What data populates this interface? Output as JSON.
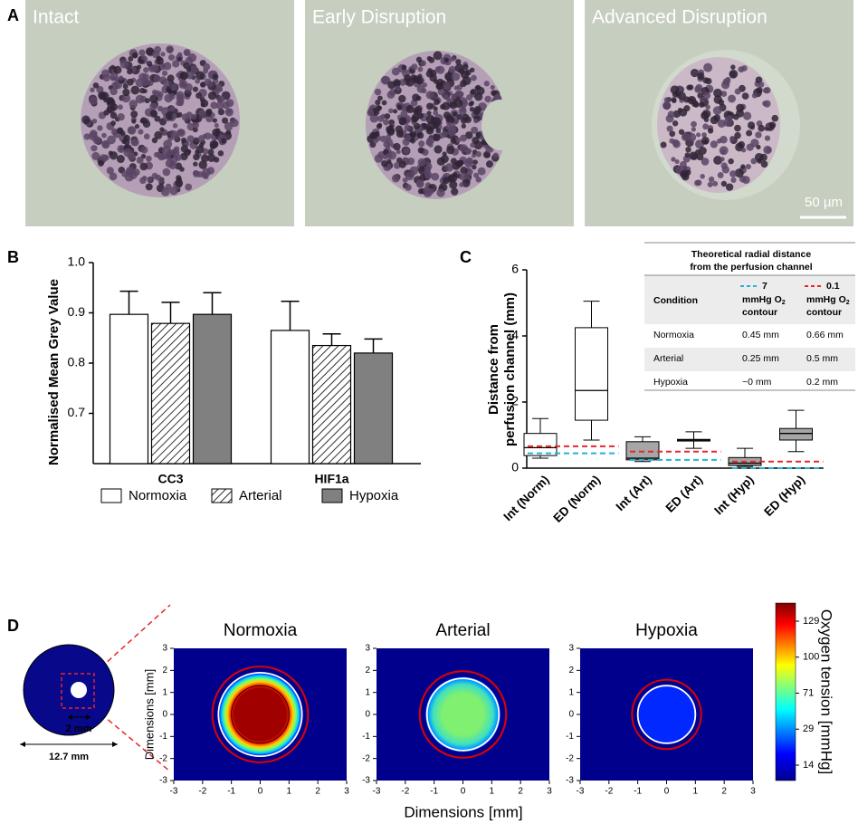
{
  "panel_labels": [
    "A",
    "B",
    "C",
    "D"
  ],
  "micrographs": {
    "labels": [
      "Intact",
      "Early Disruption",
      "Advanced Disruption"
    ],
    "scale_bar": "50 µm"
  },
  "chart_data": [
    {
      "type": "bar",
      "ylabel": "Normalised Mean Grey Value",
      "categories": [
        "CC3",
        "HIF1a"
      ],
      "series": [
        {
          "name": "Normoxia",
          "color": "#ffffff",
          "pattern": "none",
          "values": [
            0.897,
            0.865
          ],
          "errors": [
            0.046,
            0.058
          ]
        },
        {
          "name": "Arterial",
          "color": "#ffffff",
          "pattern": "hatch",
          "values": [
            0.879,
            0.835
          ],
          "errors": [
            0.042,
            0.023
          ]
        },
        {
          "name": "Hypoxia",
          "color": "#808080",
          "pattern": "none",
          "values": [
            0.897,
            0.82
          ],
          "errors": [
            0.043,
            0.028
          ]
        }
      ],
      "ylim": [
        0.6,
        1.0
      ],
      "yticks": [
        0.7,
        0.8,
        0.9,
        {
          "value": 1.0,
          "label": "1.0"
        }
      ]
    },
    {
      "type": "box",
      "ylabel": [
        "Distance from",
        "perfusion channel  (mm)"
      ],
      "categories": [
        "Int (Norm)",
        "ED (Norm)",
        "Int (Art)",
        "ED (Art)",
        "Int (Hyp)",
        "ED (Hyp)"
      ],
      "min": [
        0.3,
        0.85,
        0.2,
        0.6,
        0.05,
        0.5
      ],
      "q1": [
        0.38,
        1.45,
        0.25,
        0.82,
        0.08,
        0.85
      ],
      "median": [
        0.62,
        2.35,
        0.3,
        0.85,
        0.15,
        1.05
      ],
      "q3": [
        1.05,
        4.25,
        0.8,
        0.87,
        0.32,
        1.2
      ],
      "max": [
        1.5,
        5.05,
        0.95,
        1.1,
        0.6,
        1.75
      ],
      "fills": [
        "#ffffff",
        "#ffffff",
        "#a6a6a6",
        "#ffffff",
        "#a6a6a6",
        "#a6a6a6"
      ],
      "ylim": [
        0,
        6
      ],
      "yticks": [
        0,
        2,
        4,
        6
      ],
      "reference_lines": [
        {
          "color": "#1fb4d8",
          "values": [
            0.45,
            0.25,
            0
          ]
        },
        {
          "color": "#e8262a",
          "values": [
            0.66,
            0.5,
            0.2
          ]
        }
      ]
    },
    {
      "type": "heatmap",
      "panels": [
        "Normoxia",
        "Arterial",
        "Hypoxia"
      ],
      "xlabel": "Dimensions [mm]",
      "ylabel": "Dimensions [mm]",
      "xlim": [
        -3,
        3
      ],
      "ylim": [
        -3,
        3
      ],
      "xticks": [
        -3,
        -2,
        -1,
        0,
        1,
        2,
        3
      ],
      "yticks": [
        -3,
        -2,
        -1,
        0,
        1,
        2,
        3
      ],
      "colorbar": {
        "label": "Oxygen tension [mmHg]",
        "ticks": [
          129,
          100,
          71,
          29,
          14
        ]
      }
    }
  ],
  "inset_table": {
    "title": [
      "Theoretical radial distance",
      "from the perfusion channel"
    ],
    "columns": [
      "Condition",
      {
        "value": "7",
        "unit": "mmHg O",
        "sub": "2",
        "tail": "contour"
      },
      {
        "value": "0.1",
        "unit": "mmHg O",
        "sub": "2",
        "tail": "contour"
      }
    ],
    "rows": [
      [
        "Normoxia",
        "0.45 mm",
        "0.66 mm"
      ],
      [
        "Arterial",
        "0.25 mm",
        "0.5 mm"
      ],
      [
        "Hypoxia",
        "~0 mm",
        "0.2 mm"
      ]
    ]
  },
  "schematic": {
    "inner": "2 mm",
    "outer": "12.7 mm"
  }
}
